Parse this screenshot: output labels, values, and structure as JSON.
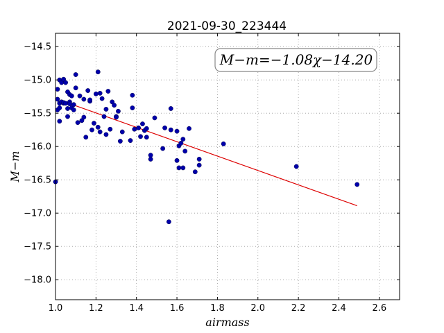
{
  "chart_data": {
    "type": "scatter",
    "title": "2021-09-30_223444",
    "xlabel": "airmass",
    "ylabel": "M−m",
    "xlim": [
      1.0,
      2.7
    ],
    "ylim": [
      -18.3,
      -14.3
    ],
    "xticks": [
      1.0,
      1.2,
      1.4,
      1.6,
      1.8,
      2.0,
      2.2,
      2.4,
      2.6
    ],
    "xtick_labels": [
      "1.0",
      "1.2",
      "1.4",
      "1.6",
      "1.8",
      "2.0",
      "2.2",
      "2.4",
      "2.6"
    ],
    "yticks": [
      -14.5,
      -15.0,
      -15.5,
      -16.0,
      -16.5,
      -17.0,
      -17.5,
      -18.0
    ],
    "ytick_labels": [
      "−14.5",
      "−15.0",
      "−15.5",
      "−16.0",
      "−16.5",
      "−17.0",
      "−17.5",
      "−18.0"
    ],
    "grid": true,
    "annotation": "M−m=−1.08χ−14.20",
    "colors": {
      "points": "#0000aa",
      "fit_line": "#dd0000"
    },
    "fit_line": {
      "slope": -1.08,
      "intercept": -14.2,
      "x": [
        1.05,
        2.49
      ]
    },
    "points": {
      "x": [
        1.0,
        1.01,
        1.01,
        1.01,
        1.02,
        1.02,
        1.02,
        1.02,
        1.03,
        1.03,
        1.04,
        1.04,
        1.04,
        1.05,
        1.05,
        1.06,
        1.06,
        1.06,
        1.07,
        1.07,
        1.07,
        1.08,
        1.08,
        1.09,
        1.09,
        1.1,
        1.1,
        1.11,
        1.12,
        1.13,
        1.14,
        1.14,
        1.15,
        1.16,
        1.17,
        1.17,
        1.18,
        1.19,
        1.2,
        1.21,
        1.21,
        1.22,
        1.22,
        1.23,
        1.24,
        1.25,
        1.25,
        1.26,
        1.27,
        1.28,
        1.29,
        1.3,
        1.3,
        1.31,
        1.32,
        1.33,
        1.37,
        1.38,
        1.38,
        1.39,
        1.41,
        1.42,
        1.43,
        1.44,
        1.45,
        1.45,
        1.47,
        1.47,
        1.49,
        1.53,
        1.54,
        1.56,
        1.57,
        1.57,
        1.6,
        1.6,
        1.61,
        1.61,
        1.62,
        1.63,
        1.63,
        1.64,
        1.66,
        1.69,
        1.71,
        1.71,
        1.83,
        2.19,
        2.49
      ],
      "y": [
        -16.53,
        -15.29,
        -15.14,
        -15.45,
        -15.62,
        -15.35,
        -15.0,
        -15.42,
        -15.04,
        -15.33,
        -14.99,
        -15.35,
        -15.34,
        -15.04,
        -15.35,
        -15.43,
        -15.55,
        -15.18,
        -15.22,
        -15.33,
        -15.36,
        -15.24,
        -15.42,
        -15.45,
        -15.37,
        -14.92,
        -15.12,
        -15.64,
        -15.24,
        -15.61,
        -15.29,
        -15.56,
        -15.86,
        -15.16,
        -15.32,
        -15.3,
        -15.75,
        -15.65,
        -15.21,
        -14.88,
        -15.71,
        -15.78,
        -15.2,
        -15.28,
        -15.55,
        -15.82,
        -15.44,
        -15.17,
        -15.74,
        -15.33,
        -15.38,
        -15.55,
        -15.56,
        -15.47,
        -15.92,
        -15.78,
        -15.91,
        -15.23,
        -15.42,
        -15.74,
        -15.72,
        -15.85,
        -15.66,
        -15.76,
        -15.73,
        -15.86,
        -16.19,
        -16.13,
        -15.57,
        -16.03,
        -15.72,
        -17.13,
        -15.75,
        -15.43,
        -15.77,
        -16.21,
        -16.32,
        -15.99,
        -15.95,
        -15.89,
        -16.32,
        -16.07,
        -15.73,
        -16.38,
        -16.19,
        -16.28,
        -15.96,
        -16.3,
        -16.57
      ]
    }
  }
}
